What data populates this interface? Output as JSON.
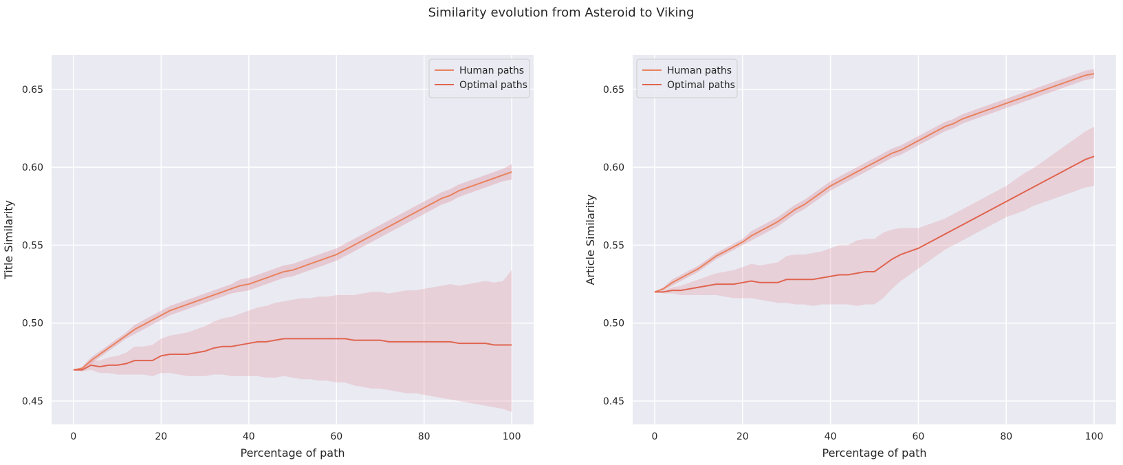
{
  "figure": {
    "suptitle": "Similarity evolution from Asteroid to Viking"
  },
  "colors": {
    "plot_background": "#eaeaf2",
    "grid": "#ffffff",
    "human_line": "#e8825e",
    "optimal_line": "#e0644f",
    "band": "#dd8c98"
  },
  "chart_data": [
    {
      "type": "line",
      "xlabel": "Percentage of path",
      "ylabel": "Title Similarity",
      "xlim": [
        -5,
        105
      ],
      "ylim": [
        0.435,
        0.672
      ],
      "xticks": [
        0,
        20,
        40,
        60,
        80,
        100
      ],
      "xtick_labels": [
        "0",
        "20",
        "40",
        "60",
        "80",
        "100"
      ],
      "yticks": [
        0.45,
        0.5,
        0.55,
        0.6,
        0.65
      ],
      "ytick_labels": [
        "0.45",
        "0.50",
        "0.55",
        "0.60",
        "0.65"
      ],
      "grid": true,
      "legend_position": "upper right",
      "legend": [
        "Human paths",
        "Optimal paths"
      ],
      "x": [
        0,
        2,
        4,
        6,
        8,
        10,
        12,
        14,
        16,
        18,
        20,
        22,
        24,
        26,
        28,
        30,
        32,
        34,
        36,
        38,
        40,
        42,
        44,
        46,
        48,
        50,
        52,
        54,
        56,
        58,
        60,
        62,
        64,
        66,
        68,
        70,
        72,
        74,
        76,
        78,
        80,
        82,
        84,
        86,
        88,
        90,
        92,
        94,
        96,
        98,
        100
      ],
      "series": [
        {
          "name": "Human paths",
          "color": "#e8825e",
          "values": [
            0.47,
            0.471,
            0.476,
            0.48,
            0.484,
            0.488,
            0.492,
            0.496,
            0.499,
            0.502,
            0.505,
            0.508,
            0.51,
            0.512,
            0.514,
            0.516,
            0.518,
            0.52,
            0.522,
            0.524,
            0.525,
            0.527,
            0.529,
            0.531,
            0.533,
            0.534,
            0.536,
            0.538,
            0.54,
            0.542,
            0.544,
            0.547,
            0.55,
            0.553,
            0.556,
            0.559,
            0.562,
            0.565,
            0.568,
            0.571,
            0.574,
            0.577,
            0.58,
            0.582,
            0.585,
            0.587,
            0.589,
            0.591,
            0.593,
            0.595,
            0.597
          ],
          "lower": [
            0.47,
            0.47,
            0.474,
            0.478,
            0.482,
            0.486,
            0.49,
            0.493,
            0.496,
            0.499,
            0.502,
            0.505,
            0.507,
            0.509,
            0.511,
            0.513,
            0.515,
            0.517,
            0.519,
            0.52,
            0.521,
            0.523,
            0.525,
            0.527,
            0.529,
            0.53,
            0.532,
            0.534,
            0.536,
            0.538,
            0.54,
            0.543,
            0.546,
            0.549,
            0.552,
            0.555,
            0.558,
            0.561,
            0.564,
            0.567,
            0.57,
            0.573,
            0.576,
            0.578,
            0.581,
            0.583,
            0.585,
            0.587,
            0.589,
            0.591,
            0.592
          ],
          "upper": [
            0.47,
            0.472,
            0.478,
            0.482,
            0.486,
            0.49,
            0.494,
            0.499,
            0.502,
            0.505,
            0.508,
            0.511,
            0.513,
            0.515,
            0.517,
            0.519,
            0.521,
            0.523,
            0.525,
            0.528,
            0.529,
            0.531,
            0.533,
            0.535,
            0.537,
            0.538,
            0.54,
            0.542,
            0.544,
            0.546,
            0.548,
            0.551,
            0.554,
            0.557,
            0.56,
            0.563,
            0.566,
            0.569,
            0.572,
            0.575,
            0.578,
            0.581,
            0.584,
            0.586,
            0.589,
            0.591,
            0.593,
            0.595,
            0.597,
            0.599,
            0.602
          ]
        },
        {
          "name": "Optimal paths",
          "color": "#e0644f",
          "values": [
            0.47,
            0.47,
            0.473,
            0.472,
            0.473,
            0.473,
            0.474,
            0.476,
            0.476,
            0.476,
            0.479,
            0.48,
            0.48,
            0.48,
            0.481,
            0.482,
            0.484,
            0.485,
            0.485,
            0.486,
            0.487,
            0.488,
            0.488,
            0.489,
            0.49,
            0.49,
            0.49,
            0.49,
            0.49,
            0.49,
            0.49,
            0.49,
            0.489,
            0.489,
            0.489,
            0.489,
            0.488,
            0.488,
            0.488,
            0.488,
            0.488,
            0.488,
            0.488,
            0.488,
            0.487,
            0.487,
            0.487,
            0.487,
            0.486,
            0.486,
            0.486
          ],
          "lower": [
            0.47,
            0.469,
            0.47,
            0.468,
            0.468,
            0.467,
            0.467,
            0.467,
            0.467,
            0.466,
            0.468,
            0.468,
            0.467,
            0.466,
            0.466,
            0.466,
            0.467,
            0.467,
            0.466,
            0.466,
            0.466,
            0.466,
            0.465,
            0.465,
            0.466,
            0.465,
            0.464,
            0.464,
            0.463,
            0.463,
            0.462,
            0.462,
            0.46,
            0.459,
            0.458,
            0.458,
            0.457,
            0.456,
            0.455,
            0.455,
            0.454,
            0.453,
            0.452,
            0.451,
            0.45,
            0.449,
            0.448,
            0.447,
            0.446,
            0.445,
            0.443
          ],
          "upper": [
            0.47,
            0.471,
            0.476,
            0.476,
            0.478,
            0.479,
            0.481,
            0.485,
            0.485,
            0.486,
            0.49,
            0.492,
            0.493,
            0.494,
            0.496,
            0.498,
            0.501,
            0.503,
            0.504,
            0.506,
            0.508,
            0.51,
            0.511,
            0.513,
            0.514,
            0.515,
            0.516,
            0.516,
            0.517,
            0.517,
            0.518,
            0.518,
            0.518,
            0.519,
            0.52,
            0.52,
            0.519,
            0.52,
            0.521,
            0.521,
            0.522,
            0.523,
            0.524,
            0.525,
            0.524,
            0.525,
            0.526,
            0.527,
            0.526,
            0.527,
            0.534
          ]
        }
      ]
    },
    {
      "type": "line",
      "xlabel": "Percentage of path",
      "ylabel": "Article Similarity",
      "xlim": [
        -5,
        105
      ],
      "ylim": [
        0.435,
        0.672
      ],
      "xticks": [
        0,
        20,
        40,
        60,
        80,
        100
      ],
      "xtick_labels": [
        "0",
        "20",
        "40",
        "60",
        "80",
        "100"
      ],
      "yticks": [
        0.45,
        0.5,
        0.55,
        0.6,
        0.65
      ],
      "ytick_labels": [
        "0.45",
        "0.50",
        "0.55",
        "0.60",
        "0.65"
      ],
      "grid": true,
      "legend_position": "upper left",
      "legend": [
        "Human paths",
        "Optimal paths"
      ],
      "x": [
        0,
        2,
        4,
        6,
        8,
        10,
        12,
        14,
        16,
        18,
        20,
        22,
        24,
        26,
        28,
        30,
        32,
        34,
        36,
        38,
        40,
        42,
        44,
        46,
        48,
        50,
        52,
        54,
        56,
        58,
        60,
        62,
        64,
        66,
        68,
        70,
        72,
        74,
        76,
        78,
        80,
        82,
        84,
        86,
        88,
        90,
        92,
        94,
        96,
        98,
        100
      ],
      "series": [
        {
          "name": "Human paths",
          "color": "#e8825e",
          "values": [
            0.52,
            0.522,
            0.526,
            0.529,
            0.532,
            0.535,
            0.539,
            0.543,
            0.546,
            0.549,
            0.552,
            0.556,
            0.559,
            0.562,
            0.565,
            0.569,
            0.573,
            0.576,
            0.58,
            0.584,
            0.588,
            0.591,
            0.594,
            0.597,
            0.6,
            0.603,
            0.606,
            0.609,
            0.611,
            0.614,
            0.617,
            0.62,
            0.623,
            0.626,
            0.628,
            0.631,
            0.633,
            0.635,
            0.637,
            0.639,
            0.641,
            0.643,
            0.645,
            0.647,
            0.649,
            0.651,
            0.653,
            0.655,
            0.657,
            0.659,
            0.66
          ],
          "lower": [
            0.52,
            0.521,
            0.524,
            0.527,
            0.53,
            0.533,
            0.537,
            0.541,
            0.544,
            0.547,
            0.55,
            0.553,
            0.556,
            0.559,
            0.562,
            0.566,
            0.57,
            0.573,
            0.577,
            0.581,
            0.585,
            0.588,
            0.591,
            0.594,
            0.597,
            0.6,
            0.603,
            0.606,
            0.608,
            0.611,
            0.614,
            0.617,
            0.62,
            0.623,
            0.625,
            0.628,
            0.63,
            0.632,
            0.634,
            0.636,
            0.638,
            0.64,
            0.642,
            0.644,
            0.646,
            0.648,
            0.65,
            0.652,
            0.654,
            0.656,
            0.657
          ],
          "upper": [
            0.52,
            0.523,
            0.528,
            0.531,
            0.534,
            0.537,
            0.541,
            0.545,
            0.548,
            0.551,
            0.554,
            0.559,
            0.562,
            0.565,
            0.568,
            0.572,
            0.576,
            0.579,
            0.583,
            0.587,
            0.591,
            0.594,
            0.597,
            0.6,
            0.603,
            0.606,
            0.609,
            0.612,
            0.614,
            0.617,
            0.62,
            0.623,
            0.626,
            0.629,
            0.631,
            0.634,
            0.636,
            0.638,
            0.64,
            0.642,
            0.644,
            0.646,
            0.648,
            0.65,
            0.652,
            0.654,
            0.656,
            0.658,
            0.66,
            0.662,
            0.663
          ]
        },
        {
          "name": "Optimal paths",
          "color": "#e0644f",
          "values": [
            0.52,
            0.52,
            0.521,
            0.521,
            0.522,
            0.523,
            0.524,
            0.525,
            0.525,
            0.525,
            0.526,
            0.527,
            0.526,
            0.526,
            0.526,
            0.528,
            0.528,
            0.528,
            0.528,
            0.529,
            0.53,
            0.531,
            0.531,
            0.532,
            0.533,
            0.533,
            0.537,
            0.541,
            0.544,
            0.546,
            0.548,
            0.551,
            0.554,
            0.557,
            0.56,
            0.563,
            0.566,
            0.569,
            0.572,
            0.575,
            0.578,
            0.581,
            0.584,
            0.587,
            0.59,
            0.593,
            0.596,
            0.599,
            0.602,
            0.605,
            0.607
          ],
          "lower": [
            0.52,
            0.519,
            0.519,
            0.518,
            0.518,
            0.518,
            0.518,
            0.518,
            0.517,
            0.516,
            0.516,
            0.516,
            0.515,
            0.514,
            0.513,
            0.513,
            0.512,
            0.512,
            0.511,
            0.512,
            0.512,
            0.512,
            0.512,
            0.511,
            0.512,
            0.512,
            0.516,
            0.522,
            0.527,
            0.531,
            0.535,
            0.539,
            0.543,
            0.547,
            0.55,
            0.553,
            0.556,
            0.559,
            0.562,
            0.565,
            0.568,
            0.57,
            0.572,
            0.575,
            0.577,
            0.579,
            0.581,
            0.583,
            0.585,
            0.587,
            0.588
          ],
          "upper": [
            0.52,
            0.521,
            0.523,
            0.524,
            0.526,
            0.528,
            0.53,
            0.532,
            0.533,
            0.534,
            0.536,
            0.538,
            0.537,
            0.538,
            0.539,
            0.543,
            0.544,
            0.544,
            0.545,
            0.546,
            0.548,
            0.55,
            0.55,
            0.553,
            0.554,
            0.554,
            0.558,
            0.56,
            0.561,
            0.561,
            0.561,
            0.563,
            0.565,
            0.567,
            0.57,
            0.573,
            0.576,
            0.579,
            0.582,
            0.585,
            0.588,
            0.592,
            0.596,
            0.599,
            0.603,
            0.607,
            0.611,
            0.615,
            0.619,
            0.623,
            0.626
          ]
        }
      ]
    }
  ]
}
